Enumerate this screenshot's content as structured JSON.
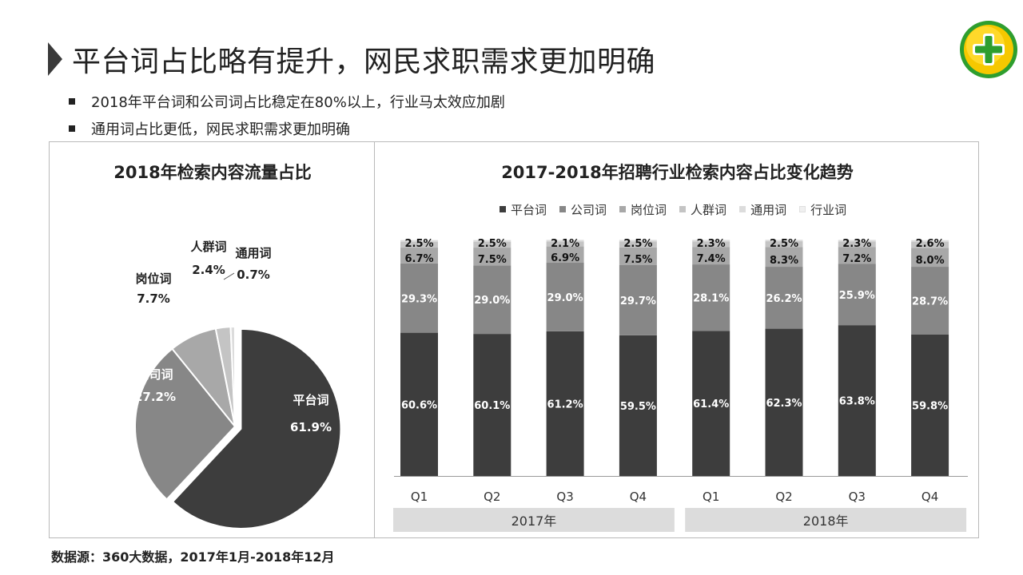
{
  "header": {
    "title": "平台词占比略有提升，网民求职需求更加明确"
  },
  "bullets": [
    "2018年平台词和公司词占比稳定在80%以上，行业马太效应加剧",
    "通用词占比更低，网民求职需求更加明确"
  ],
  "logo": {
    "icon": "360-logo-icon",
    "colors": [
      "#f6c800",
      "#2e9e2e",
      "#ffffff"
    ]
  },
  "source": "数据源：360大数据，2017年1月-2018年12月",
  "colors": {
    "平台词": "#3d3d3d",
    "公司词": "#878787",
    "岗位词": "#a8a8a8",
    "人群词": "#c4c4c4",
    "通用词": "#dcdcdc",
    "行业词": "#f0f0f0"
  },
  "chart_data": [
    {
      "type": "pie",
      "title": "2018年检索内容流量占比",
      "slices": [
        {
          "name": "平台词",
          "value": 61.9,
          "label": "61.9%",
          "exploded": true
        },
        {
          "name": "公司词",
          "value": 27.2,
          "label": "27.2%"
        },
        {
          "name": "岗位词",
          "value": 7.7,
          "label": "7.7%"
        },
        {
          "name": "人群词",
          "value": 2.4,
          "label": "2.4%"
        },
        {
          "name": "通用词",
          "value": 0.7,
          "label": "0.7%"
        }
      ]
    },
    {
      "type": "bar",
      "stacked": true,
      "title": "2017-2018年招聘行业检索内容占比变化趋势",
      "legend": [
        "平台词",
        "公司词",
        "岗位词",
        "人群词",
        "通用词",
        "行业词"
      ],
      "legend_position": "top",
      "categories": [
        "Q1",
        "Q2",
        "Q3",
        "Q4",
        "Q1",
        "Q2",
        "Q3",
        "Q4"
      ],
      "groups": [
        {
          "label": "2017年",
          "span": [
            0,
            3
          ]
        },
        {
          "label": "2018年",
          "span": [
            4,
            7
          ]
        }
      ],
      "ylim": [
        0,
        100
      ],
      "series": [
        {
          "name": "平台词",
          "values": [
            60.6,
            60.1,
            61.2,
            59.5,
            61.4,
            62.3,
            63.8,
            59.8
          ],
          "labels": [
            "60.6%",
            "60.1%",
            "61.2%",
            "59.5%",
            "61.4%",
            "62.3%",
            "63.8%",
            "59.8%"
          ]
        },
        {
          "name": "公司词",
          "values": [
            29.3,
            29.0,
            29.0,
            29.7,
            28.1,
            26.2,
            25.9,
            28.7
          ],
          "labels": [
            "29.3%",
            "29.0%",
            "29.0%",
            "29.7%",
            "28.1%",
            "26.2%",
            "25.9%",
            "28.7%"
          ]
        },
        {
          "name": "岗位词",
          "values": [
            6.7,
            7.5,
            6.9,
            7.5,
            7.4,
            8.3,
            7.2,
            8.0
          ],
          "labels": [
            "6.7%",
            "7.5%",
            "6.9%",
            "7.5%",
            "7.4%",
            "8.3%",
            "7.2%",
            "8.0%"
          ]
        },
        {
          "name": "人群词",
          "values": [
            2.5,
            2.5,
            2.1,
            2.5,
            2.3,
            2.5,
            2.3,
            2.6
          ],
          "labels": [
            "2.5%",
            "2.5%",
            "2.1%",
            "2.5%",
            "2.3%",
            "2.5%",
            "2.3%",
            "2.6%"
          ]
        },
        {
          "name": "通用词",
          "values": [
            0.6,
            0.6,
            0.6,
            0.6,
            0.6,
            0.6,
            0.6,
            0.6
          ]
        },
        {
          "name": "行业词",
          "values": [
            0.3,
            0.3,
            0.2,
            0.2,
            0.2,
            0.1,
            0.2,
            0.2
          ]
        }
      ]
    }
  ]
}
